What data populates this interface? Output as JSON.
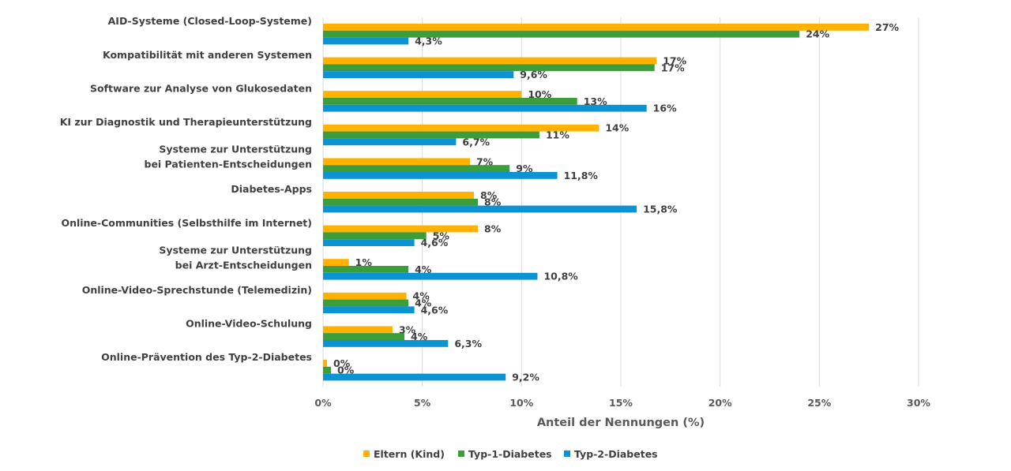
{
  "chart_data": {
    "type": "bar",
    "orientation": "horizontal",
    "title": "",
    "xlabel": "Anteil der Nennungen (%)",
    "ylabel": "",
    "xlim": [
      0,
      30
    ],
    "xticks": [
      0,
      5,
      10,
      15,
      20,
      25,
      30
    ],
    "xtick_labels": [
      "0%",
      "5%",
      "10%",
      "15%",
      "20%",
      "25%",
      "30%"
    ],
    "grid": "vertical",
    "legend_position": "bottom",
    "categories": [
      [
        "AID-Systeme (Closed-Loop-Systeme)"
      ],
      [
        "Kompatibilität mit anderen Systemen"
      ],
      [
        "Software zur Analyse von Glukosedaten"
      ],
      [
        "KI zur Diagnostik und Therapieunterstützung"
      ],
      [
        "Systeme zur Unterstützung",
        "bei Patienten-Entscheidungen"
      ],
      [
        "Diabetes-Apps"
      ],
      [
        "Online-Communities (Selbsthilfe im Internet)"
      ],
      [
        "Systeme zur Unterstützung",
        "bei Arzt-Entscheidungen"
      ],
      [
        "Online-Video-Sprechstunde (Telemedizin)"
      ],
      [
        "Online-Video-Schulung"
      ],
      [
        "Online-Prävention des Typ-2-Diabetes"
      ]
    ],
    "series": [
      {
        "name": "Eltern (Kind)",
        "color": "#FFB300",
        "values": [
          27.5,
          16.8,
          10.0,
          13.9,
          7.4,
          7.6,
          7.8,
          1.3,
          4.2,
          3.5,
          0.2
        ],
        "labels": [
          "27%",
          "17%",
          "10%",
          "14%",
          "7%",
          "8%",
          "8%",
          "1%",
          "4%",
          "3%",
          "0%"
        ]
      },
      {
        "name": "Typ-1-Diabetes",
        "color": "#3C9E3A",
        "values": [
          24.0,
          16.7,
          12.8,
          10.9,
          9.4,
          7.8,
          5.2,
          4.3,
          4.3,
          4.1,
          0.4
        ],
        "labels": [
          "24%",
          "17%",
          "13%",
          "11%",
          "9%",
          "8%",
          "5%",
          "4%",
          "4%",
          "4%",
          "0%"
        ]
      },
      {
        "name": "Typ-2-Diabetes",
        "color": "#0B93D4",
        "values": [
          4.3,
          9.6,
          16.3,
          6.7,
          11.8,
          15.8,
          4.6,
          10.8,
          4.6,
          6.3,
          9.2
        ],
        "labels": [
          "4,3%",
          "9,6%",
          "16%",
          "6,7%",
          "11,8%",
          "15,8%",
          "4,6%",
          "10,8%",
          "4,6%",
          "6,3%",
          "9,2%"
        ]
      }
    ]
  }
}
